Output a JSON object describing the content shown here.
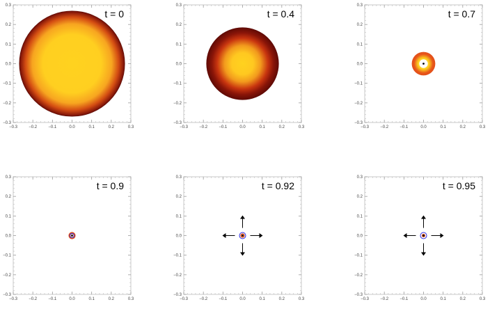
{
  "chart_data": [
    {
      "type": "heatmap",
      "time_label": "t = 0",
      "xlim": [
        -0.3,
        0.3
      ],
      "ylim": [
        -0.3,
        0.3
      ],
      "x_ticks": [
        "−0.3",
        "−0.2",
        "−0.1",
        "0.0",
        "0.1",
        "0.2",
        "0.3"
      ],
      "y_ticks": [
        "−0.3",
        "−0.2",
        "−0.1",
        "0.0",
        "0.1",
        "0.2",
        "0.3"
      ],
      "disk_radius": 0.27,
      "hole_radius": 0,
      "center_dot": false,
      "blue_ring_radius": 0,
      "arrows": false,
      "gradient": [
        [
          "#ffd21f",
          0
        ],
        [
          "#ffcf20",
          0.55
        ],
        [
          "#f7a520",
          0.75
        ],
        [
          "#d34c12",
          0.88
        ],
        [
          "#8a1a0a",
          0.97
        ],
        [
          "#5e0c06",
          1
        ]
      ]
    },
    {
      "type": "heatmap",
      "time_label": "t = 0.4",
      "xlim": [
        -0.3,
        0.3
      ],
      "ylim": [
        -0.3,
        0.3
      ],
      "x_ticks": [
        "−0.3",
        "−0.2",
        "−0.1",
        "0.0",
        "0.1",
        "0.2",
        "0.3"
      ],
      "y_ticks": [
        "−0.3",
        "−0.2",
        "−0.1",
        "0.0",
        "0.1",
        "0.2",
        "0.3"
      ],
      "disk_radius": 0.185,
      "hole_radius": 0,
      "center_dot": false,
      "blue_ring_radius": 0,
      "arrows": false,
      "gradient": [
        [
          "#ffd21f",
          0
        ],
        [
          "#ffc820",
          0.3
        ],
        [
          "#f29a1d",
          0.5
        ],
        [
          "#c8350f",
          0.7
        ],
        [
          "#8a1508",
          0.85
        ],
        [
          "#5e0a05",
          1
        ]
      ]
    },
    {
      "type": "heatmap",
      "time_label": "t = 0.7",
      "xlim": [
        -0.3,
        0.3
      ],
      "ylim": [
        -0.3,
        0.3
      ],
      "x_ticks": [
        "−0.3",
        "−0.2",
        "−0.1",
        "0.0",
        "0.1",
        "0.2",
        "0.3"
      ],
      "y_ticks": [
        "−0.3",
        "−0.2",
        "−0.1",
        "0.0",
        "0.1",
        "0.2",
        "0.3"
      ],
      "disk_radius": 0.06,
      "hole_radius": 0.022,
      "center_dot": true,
      "blue_ring_radius": 0,
      "arrows": false,
      "gradient": [
        [
          "#ffe08a",
          0
        ],
        [
          "#ffd21f",
          0.45
        ],
        [
          "#f29a1d",
          0.62
        ],
        [
          "#e8561a",
          0.8
        ],
        [
          "#e24f19",
          1
        ]
      ]
    },
    {
      "type": "heatmap",
      "time_label": "t = 0.9",
      "xlim": [
        -0.3,
        0.3
      ],
      "ylim": [
        -0.3,
        0.3
      ],
      "x_ticks": [
        "−0.3",
        "−0.2",
        "−0.1",
        "0.0",
        "0.1",
        "0.2",
        "0.3"
      ],
      "y_ticks": [
        "−0.3",
        "−0.2",
        "−0.1",
        "0.0",
        "0.1",
        "0.2",
        "0.3"
      ],
      "disk_radius": 0.018,
      "hole_radius": 0.007,
      "center_dot": true,
      "blue_ring_radius": 0.011,
      "arrows": false,
      "gradient": [
        [
          "#ffffff",
          0
        ],
        [
          "#ffb070",
          0.4
        ],
        [
          "#e8561a",
          0.7
        ],
        [
          "#d9481a",
          1
        ]
      ]
    },
    {
      "type": "heatmap",
      "time_label": "t = 0.92",
      "xlim": [
        -0.3,
        0.3
      ],
      "ylim": [
        -0.3,
        0.3
      ],
      "x_ticks": [
        "−0.3",
        "−0.2",
        "−0.1",
        "0.0",
        "0.1",
        "0.2",
        "0.3"
      ],
      "y_ticks": [
        "−0.3",
        "−0.2",
        "−0.1",
        "0.0",
        "0.1",
        "0.2",
        "0.3"
      ],
      "disk_radius": 0.011,
      "hole_radius": 0.005,
      "center_dot": true,
      "blue_ring_radius": 0.016,
      "arrows": true,
      "gradient": [
        [
          "#ffffff",
          0
        ],
        [
          "#f3a070",
          0.4
        ],
        [
          "#e04e1b",
          0.7
        ],
        [
          "#d9481a",
          1
        ]
      ]
    },
    {
      "type": "heatmap",
      "time_label": "t = 0.95",
      "xlim": [
        -0.3,
        0.3
      ],
      "ylim": [
        -0.3,
        0.3
      ],
      "x_ticks": [
        "−0.3",
        "−0.2",
        "−0.1",
        "0.0",
        "0.1",
        "0.2",
        "0.3"
      ],
      "y_ticks": [
        "−0.3",
        "−0.2",
        "−0.1",
        "0.0",
        "0.1",
        "0.2",
        "0.3"
      ],
      "disk_radius": 0.009,
      "hole_radius": 0.004,
      "center_dot": true,
      "blue_ring_radius": 0.016,
      "arrows": true,
      "gradient": [
        [
          "#ffffff",
          0
        ],
        [
          "#f3a070",
          0.4
        ],
        [
          "#e04e1b",
          0.7
        ],
        [
          "#d9481a",
          1
        ]
      ]
    }
  ]
}
